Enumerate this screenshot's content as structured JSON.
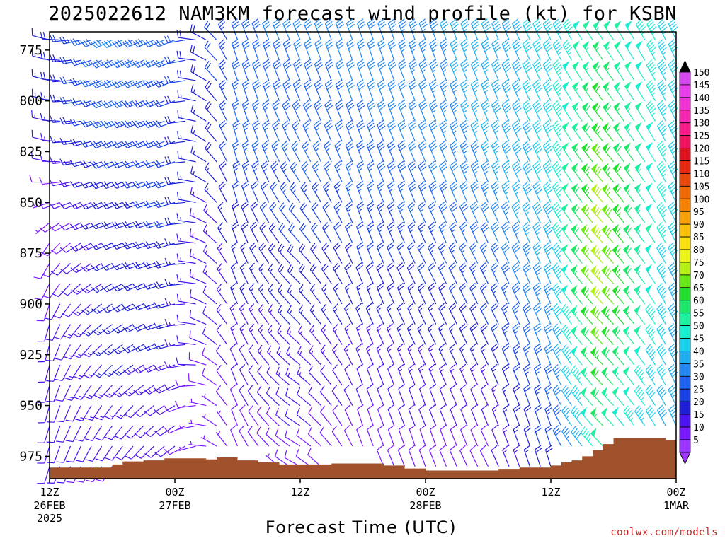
{
  "title": "2025022612 NAM3KM forecast wind profile (kt) for KSBN",
  "chart_data": {
    "type": "wind-barb profile",
    "xlabel": "Forecast Time (UTC)",
    "ylabel": "",
    "y_ticks": [
      775,
      800,
      825,
      850,
      875,
      900,
      925,
      950,
      975
    ],
    "ylim": [
      986,
      766
    ],
    "x_ticks": [
      {
        "hour": 0,
        "line1": "12Z",
        "line2": "26FEB",
        "line3": "2025"
      },
      {
        "hour": 12,
        "line1": "00Z",
        "line2": "27FEB",
        "line3": ""
      },
      {
        "hour": 24,
        "line1": "12Z",
        "line2": "",
        "line3": ""
      },
      {
        "hour": 36,
        "line1": "00Z",
        "line2": "28FEB",
        "line3": ""
      },
      {
        "hour": 48,
        "line1": "12Z",
        "line2": "",
        "line3": ""
      },
      {
        "hour": 60,
        "line1": "00Z",
        "line2": "1MAR",
        "line3": ""
      }
    ],
    "xlim": [
      0,
      60
    ],
    "levels": [
      770,
      780,
      790,
      800,
      810,
      820,
      830,
      840,
      850,
      860,
      870,
      880,
      890,
      900,
      910,
      920,
      930,
      940,
      950,
      960,
      970,
      980
    ],
    "surface_pressure": [
      {
        "hour": 0,
        "hPa": 980.5
      },
      {
        "hour": 5,
        "hPa": 980.5
      },
      {
        "hour": 6,
        "hPa": 979
      },
      {
        "hour": 7,
        "hPa": 977.5
      },
      {
        "hour": 9,
        "hPa": 977
      },
      {
        "hour": 11,
        "hPa": 976
      },
      {
        "hour": 15,
        "hPa": 976.5
      },
      {
        "hour": 16,
        "hPa": 975.5
      },
      {
        "hour": 18,
        "hPa": 977
      },
      {
        "hour": 20,
        "hPa": 978
      },
      {
        "hour": 22,
        "hPa": 979
      },
      {
        "hour": 27,
        "hPa": 978.5
      },
      {
        "hour": 32,
        "hPa": 979.5
      },
      {
        "hour": 34,
        "hPa": 981
      },
      {
        "hour": 36,
        "hPa": 982
      },
      {
        "hour": 40,
        "hPa": 982
      },
      {
        "hour": 43,
        "hPa": 981.5
      },
      {
        "hour": 45,
        "hPa": 980.5
      },
      {
        "hour": 48,
        "hPa": 979.5
      },
      {
        "hour": 49,
        "hPa": 978
      },
      {
        "hour": 50,
        "hPa": 977
      },
      {
        "hour": 51,
        "hPa": 975
      },
      {
        "hour": 52,
        "hPa": 972
      },
      {
        "hour": 53,
        "hPa": 969
      },
      {
        "hour": 54,
        "hPa": 966
      },
      {
        "hour": 58,
        "hPa": 966
      },
      {
        "hour": 59,
        "hPa": 967
      },
      {
        "hour": 60,
        "hPa": 968
      }
    ],
    "wind_samples": [
      {
        "hour": 0,
        "u": [
          16,
          16,
          16,
          15,
          14,
          12,
          10,
          8,
          6,
          5,
          4,
          4,
          4,
          3,
          3,
          3,
          3,
          3,
          3,
          3,
          3,
          3
        ],
        "v": [
          -4,
          -4,
          -4,
          -4,
          -3,
          -3,
          -2,
          0,
          2,
          4,
          6,
          7,
          8,
          9,
          10,
          11,
          11,
          11,
          11,
          10,
          10,
          10
        ]
      },
      {
        "hour": 6,
        "u": [
          28,
          27,
          26,
          25,
          24,
          22,
          20,
          18,
          17,
          16,
          15,
          15,
          14,
          14,
          13,
          12,
          11,
          10,
          8,
          7,
          6,
          5
        ],
        "v": [
          14,
          13,
          12,
          11,
          10,
          9,
          8,
          7,
          7,
          6,
          6,
          7,
          8,
          9,
          10,
          10,
          11,
          11,
          11,
          10,
          9,
          8
        ]
      },
      {
        "hour": 12,
        "u": [
          24,
          23,
          22,
          21,
          21,
          21,
          21,
          20,
          20,
          20,
          19,
          18,
          17,
          16,
          15,
          15,
          14,
          12,
          10,
          9,
          8,
          7
        ],
        "v": [
          10,
          10,
          9,
          8,
          8,
          8,
          7,
          7,
          6,
          6,
          6,
          5,
          5,
          4,
          4,
          4,
          5,
          6,
          6,
          6,
          6,
          6
        ]
      },
      {
        "hour": 18,
        "u": [
          10,
          9,
          9,
          8,
          8,
          7,
          7,
          6,
          6,
          6,
          6,
          6,
          6,
          6,
          6,
          5,
          5,
          4,
          4,
          3,
          3,
          3
        ],
        "v": [
          -28,
          -27,
          -27,
          -26,
          -26,
          -25,
          -24,
          -22,
          -20,
          -18,
          -17,
          -16,
          -15,
          -14,
          -13,
          -12,
          -11,
          -10,
          -9,
          -8,
          -7,
          -6
        ]
      },
      {
        "hour": 24,
        "u": [
          12,
          11,
          11,
          11,
          12,
          12,
          13,
          14,
          14,
          14,
          14,
          14,
          13,
          12,
          11,
          11,
          11,
          11,
          10,
          9,
          8,
          7
        ],
        "v": [
          -28,
          -28,
          -27,
          -26,
          -25,
          -24,
          -23,
          -21,
          -19,
          -17,
          -16,
          -14,
          -13,
          -12,
          -11,
          -10,
          -9,
          -8,
          -7,
          -6,
          -5,
          -4
        ]
      },
      {
        "hour": 30,
        "u": [
          10,
          10,
          10,
          10,
          10,
          10,
          10,
          9,
          9,
          8,
          8,
          7,
          7,
          6,
          6,
          5,
          5,
          4,
          4,
          3,
          3,
          3
        ],
        "v": [
          -30,
          -30,
          -29,
          -29,
          -28,
          -27,
          -26,
          -25,
          -24,
          -22,
          -21,
          -19,
          -17,
          -16,
          -14,
          -13,
          -12,
          -11,
          -10,
          -9,
          -8,
          -7
        ]
      },
      {
        "hour": 36,
        "u": [
          12,
          12,
          12,
          12,
          12,
          12,
          12,
          12,
          11,
          11,
          10,
          10,
          9,
          8,
          7,
          7,
          6,
          5,
          4,
          4,
          3,
          3
        ],
        "v": [
          -32,
          -31,
          -31,
          -30,
          -30,
          -29,
          -28,
          -27,
          -26,
          -24,
          -22,
          -20,
          -18,
          -17,
          -15,
          -14,
          -13,
          -12,
          -11,
          -10,
          -9,
          -8
        ]
      },
      {
        "hour": 42,
        "u": [
          14,
          14,
          14,
          14,
          14,
          14,
          14,
          13,
          13,
          13,
          12,
          12,
          11,
          10,
          9,
          8,
          7,
          6,
          5,
          4,
          4,
          4
        ],
        "v": [
          -35,
          -35,
          -34,
          -34,
          -34,
          -33,
          -33,
          -32,
          -30,
          -28,
          -26,
          -24,
          -22,
          -20,
          -18,
          -17,
          -15,
          -13,
          -11,
          -10,
          -9,
          -8
        ]
      },
      {
        "hour": 48,
        "u": [
          18,
          18,
          18,
          18,
          18,
          18,
          18,
          18,
          17,
          17,
          16,
          15,
          14,
          14,
          13,
          12,
          11,
          10,
          9,
          8,
          7,
          6
        ],
        "v": [
          -38,
          -38,
          -38,
          -38,
          -38,
          -38,
          -38,
          -38,
          -37,
          -36,
          -35,
          -34,
          -33,
          -32,
          -31,
          -30,
          -29,
          -27,
          -25,
          -23,
          -21,
          -19
        ]
      },
      {
        "hour": 53,
        "u": [
          30,
          32,
          34,
          36,
          38,
          40,
          42,
          44,
          46,
          48,
          50,
          50,
          50,
          49,
          48,
          46,
          44,
          42,
          40,
          38,
          36,
          34
        ],
        "v": [
          -45,
          -46,
          -47,
          -48,
          -49,
          -50,
          -51,
          -52,
          -53,
          -54,
          -55,
          -54,
          -53,
          -52,
          -50,
          -48,
          -46,
          -44,
          -42,
          -40,
          -38,
          -36
        ]
      },
      {
        "hour": 60,
        "u": [
          18,
          18,
          18,
          18,
          18,
          18,
          18,
          18,
          18,
          18,
          18,
          18,
          17,
          17,
          17,
          17,
          16,
          16,
          16,
          15,
          15,
          15
        ],
        "v": [
          -38,
          -38,
          -38,
          -38,
          -38,
          -38,
          -38,
          -38,
          -37,
          -37,
          -37,
          -36,
          -36,
          -36,
          -35,
          -35,
          -34,
          -34,
          -33,
          -33,
          -32,
          -32
        ]
      }
    ],
    "colorbar": {
      "levels": [
        5,
        10,
        15,
        20,
        25,
        30,
        35,
        40,
        45,
        50,
        55,
        60,
        65,
        70,
        75,
        80,
        85,
        90,
        95,
        100,
        105,
        110,
        115,
        120,
        125,
        130,
        135,
        140,
        145,
        150
      ],
      "colors": [
        "#9e35ff",
        "#7a18ff",
        "#4b14f0",
        "#1f1fd6",
        "#1842e6",
        "#1e64f0",
        "#2488f0",
        "#20aef2",
        "#18d2ec",
        "#18eed0",
        "#1ef2a0",
        "#1ee86a",
        "#24e02e",
        "#68e816",
        "#b4f014",
        "#ecf41a",
        "#fae010",
        "#fac00c",
        "#f7a00a",
        "#f58406",
        "#f06a08",
        "#e84a0c",
        "#e52a10",
        "#e01420",
        "#f01460",
        "#f71c8a",
        "#f528b4",
        "#f234d6",
        "#e840ec",
        "#d848f2"
      ],
      "top_arrow": "#000000",
      "bottom_arrow": "#9e35ff"
    },
    "ground_color": "#a0522d",
    "grid": false,
    "legend": "right colorbar"
  },
  "footer": {
    "credit": "coolwx.com/models"
  }
}
